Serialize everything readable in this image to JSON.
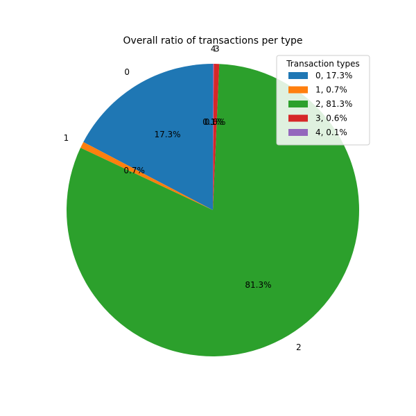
{
  "chart_data": {
    "type": "pie",
    "title": "Overall ratio of transactions per type",
    "categories": [
      "0",
      "1",
      "2",
      "3",
      "4"
    ],
    "values": [
      17.3,
      0.7,
      81.3,
      0.6,
      0.1
    ],
    "percent_labels": [
      "17.3%",
      "0.7%",
      "81.3%",
      "0.6%",
      "0.1%"
    ],
    "colors": [
      "#1f77b4",
      "#ff7f0e",
      "#2ca02c",
      "#d62728",
      "#9467bd"
    ],
    "start_angle_deg": 90,
    "direction": "counterclockwise",
    "legend": {
      "title": "Transaction types",
      "placement": "top-right",
      "entries": [
        "0, 17.3%",
        "1, 0.7%",
        "2, 81.3%",
        "3, 0.6%",
        "4, 0.1%"
      ]
    }
  }
}
